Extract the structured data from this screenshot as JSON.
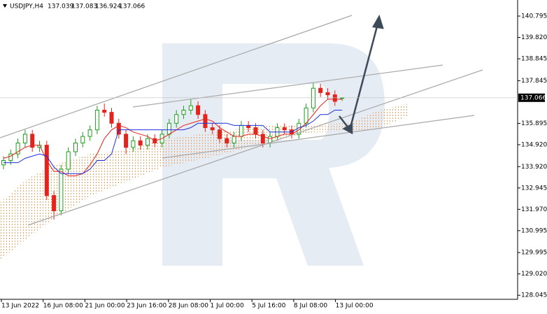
{
  "chart_data": {
    "type": "candlestick",
    "symbol": "USDJPY,H4",
    "header_values": [
      137.039,
      137.083,
      136.924,
      137.066
    ],
    "current_price": {
      "value": 137.066,
      "label": "137.066"
    },
    "x_labels": [
      "13 Jun 2022",
      "16 Jun 08:00",
      "21 Jun 00:00",
      "23 Jun 16:00",
      "28 Jun 08:00",
      "1 Jul 00:00",
      "5 Jul 16:00",
      "8 Jul 08:00",
      "13 Jul 00:00"
    ],
    "ylim": [
      127.86,
      141.53
    ],
    "yticks": [
      {
        "value": 140.795,
        "label": "140.795"
      },
      {
        "value": 139.82,
        "label": "139.820"
      },
      {
        "value": 138.845,
        "label": "138.845"
      },
      {
        "value": 137.845,
        "label": "137.845"
      },
      {
        "value": 135.895,
        "label": "135.895"
      },
      {
        "value": 134.92,
        "label": "134.920"
      },
      {
        "value": 133.92,
        "label": "133.920"
      },
      {
        "value": 132.945,
        "label": "132.945"
      },
      {
        "value": 131.97,
        "label": "131.970"
      },
      {
        "value": 130.995,
        "label": "130.995"
      },
      {
        "value": 129.995,
        "label": "129.995"
      },
      {
        "value": 129.02,
        "label": "129.020"
      },
      {
        "value": 128.045,
        "label": "128.045"
      }
    ],
    "up_color": "#1f9e1f",
    "down_color": "#e3241c",
    "open": [
      134.0,
      134.2,
      134.5,
      135.0,
      135.4,
      134.8,
      134.9,
      132.6,
      131.9,
      133.8,
      134.6,
      135.0,
      135.3,
      135.6,
      136.5,
      136.4,
      135.9,
      135.4,
      134.8,
      135.1,
      134.9,
      135.2,
      135.0,
      135.4,
      135.9,
      136.3,
      136.5,
      136.7,
      136.3,
      135.7,
      135.6,
      135.2,
      135.0,
      135.3,
      135.8,
      135.7,
      135.4,
      135.0,
      135.3,
      135.7,
      135.6,
      135.4,
      135.9,
      136.6,
      137.5,
      137.3,
      137.2,
      137.039
    ],
    "high": [
      134.4,
      134.7,
      135.2,
      135.6,
      135.6,
      135.1,
      135.1,
      132.8,
      134.0,
      134.8,
      135.2,
      135.5,
      135.8,
      136.7,
      136.8,
      136.6,
      136.1,
      135.6,
      135.3,
      135.3,
      135.4,
      135.4,
      135.6,
      136.1,
      136.5,
      136.7,
      137.0,
      136.9,
      136.5,
      135.9,
      135.8,
      135.4,
      135.5,
      136.0,
      136.0,
      135.9,
      135.6,
      135.5,
      135.9,
      135.9,
      135.8,
      136.1,
      136.8,
      137.75,
      137.7,
      137.5,
      137.4,
      137.083
    ],
    "low": [
      133.8,
      134.0,
      134.3,
      134.8,
      134.6,
      134.6,
      132.4,
      131.5,
      131.7,
      133.6,
      134.4,
      134.8,
      135.1,
      135.4,
      136.2,
      135.7,
      135.2,
      134.5,
      134.6,
      134.7,
      134.7,
      134.8,
      134.8,
      135.2,
      135.7,
      136.1,
      136.3,
      136.1,
      135.5,
      135.4,
      135.0,
      134.8,
      134.8,
      135.1,
      135.5,
      135.2,
      134.8,
      134.8,
      135.1,
      135.4,
      135.2,
      135.2,
      135.7,
      136.4,
      137.1,
      137.0,
      136.7,
      136.924
    ],
    "close": [
      134.2,
      134.5,
      135.0,
      135.4,
      134.8,
      134.9,
      132.6,
      131.9,
      133.8,
      134.6,
      135.0,
      135.3,
      135.6,
      136.5,
      136.4,
      135.9,
      135.4,
      134.8,
      135.1,
      134.9,
      135.2,
      135.0,
      135.4,
      135.9,
      136.3,
      136.5,
      136.7,
      136.3,
      135.7,
      135.6,
      135.2,
      135.0,
      135.3,
      135.8,
      135.7,
      135.4,
      135.0,
      135.3,
      135.7,
      135.6,
      135.4,
      135.9,
      136.6,
      137.5,
      137.3,
      137.2,
      136.9,
      137.066
    ],
    "lines": [
      {
        "color": "#e8201a",
        "values": [
          134.3,
          134.4,
          134.6,
          134.8,
          134.9,
          134.9,
          134.2,
          133.7,
          133.7,
          133.5,
          133.5,
          133.6,
          134.0,
          134.5,
          135.2,
          135.6,
          135.8,
          135.7,
          135.5,
          135.4,
          135.3,
          135.1,
          135.2,
          135.4,
          135.6,
          135.8,
          135.9,
          136.0,
          136.1,
          136.0,
          135.7,
          135.5,
          135.3,
          135.3,
          135.4,
          135.4,
          135.3,
          135.2,
          135.3,
          135.4,
          135.4,
          135.6,
          135.9,
          136.3,
          136.7,
          137.0,
          137.0,
          137.0
        ]
      },
      {
        "color": "#1f2fe0",
        "values": [
          134.1,
          134.1,
          134.1,
          134.3,
          134.4,
          134.5,
          134.4,
          133.9,
          133.6,
          133.6,
          133.6,
          133.6,
          133.8,
          134.2,
          134.2,
          134.5,
          135.6,
          135.6,
          135.6,
          135.6,
          135.6,
          135.6,
          135.6,
          135.6,
          135.6,
          135.6,
          135.7,
          135.9,
          135.9,
          135.9,
          135.9,
          135.9,
          135.8,
          135.8,
          135.8,
          135.8,
          135.8,
          135.5,
          135.5,
          135.5,
          135.5,
          135.7,
          135.8,
          136.0,
          136.3,
          136.3,
          136.5,
          136.5
        ]
      }
    ]
  }
}
